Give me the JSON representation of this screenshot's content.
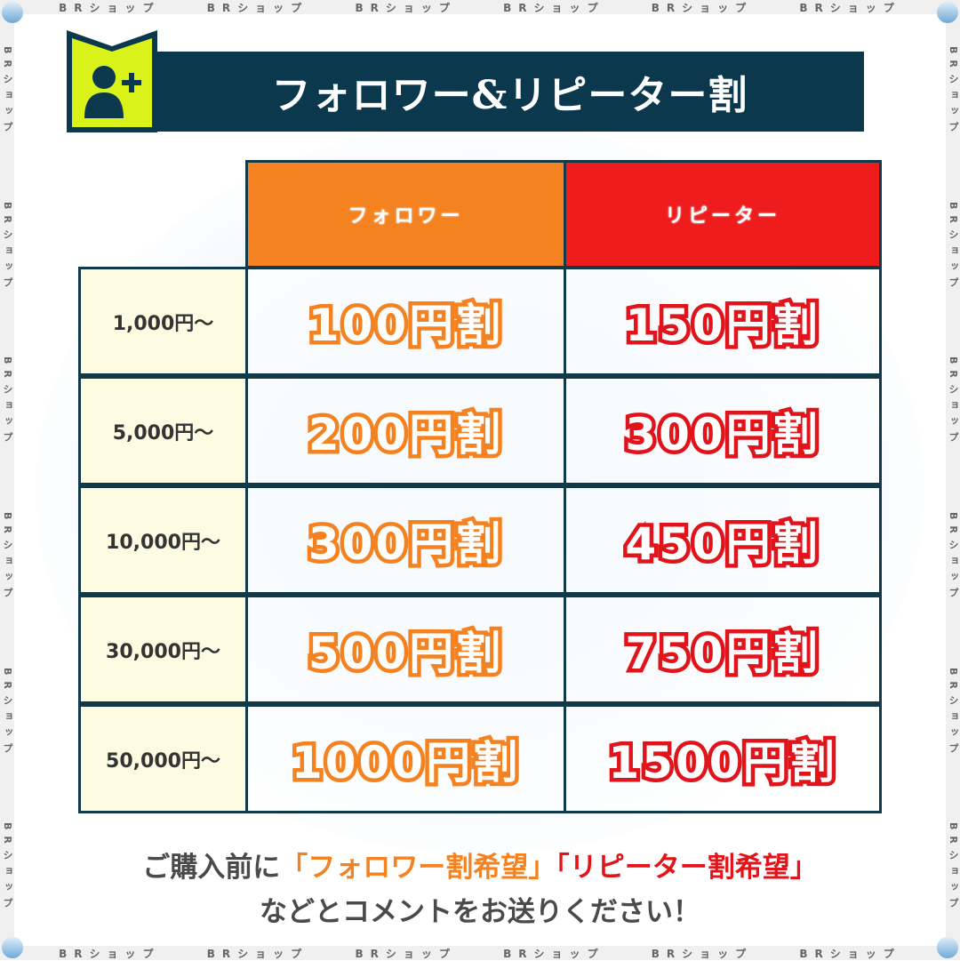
{
  "watermark": "BRショップ",
  "header": {
    "title": "フォロワー&リピーター割",
    "icon": "user-plus-icon"
  },
  "colors": {
    "navy": "#0b384d",
    "lime": "#d9f21a",
    "orange": "#f58220",
    "red": "#ee1c1c",
    "label_bg": "#fdfbe1"
  },
  "table": {
    "columns": [
      "フォロワー",
      "リピーター"
    ],
    "rows": [
      {
        "label": "1,000円〜",
        "follower": "100円割",
        "repeater": "150円割"
      },
      {
        "label": "5,000円〜",
        "follower": "200円割",
        "repeater": "300円割"
      },
      {
        "label": "10,000円〜",
        "follower": "300円割",
        "repeater": "450円割"
      },
      {
        "label": "30,000円〜",
        "follower": "500円割",
        "repeater": "750円割"
      },
      {
        "label": "50,000円〜",
        "follower": "1000円割",
        "repeater": "1500円割"
      }
    ]
  },
  "note": {
    "prefix": "ご購入前に",
    "follower_request": "「フォロワー割希望」",
    "repeater_request": "「リピーター割希望」",
    "line2": "などとコメントをお送りください！"
  }
}
